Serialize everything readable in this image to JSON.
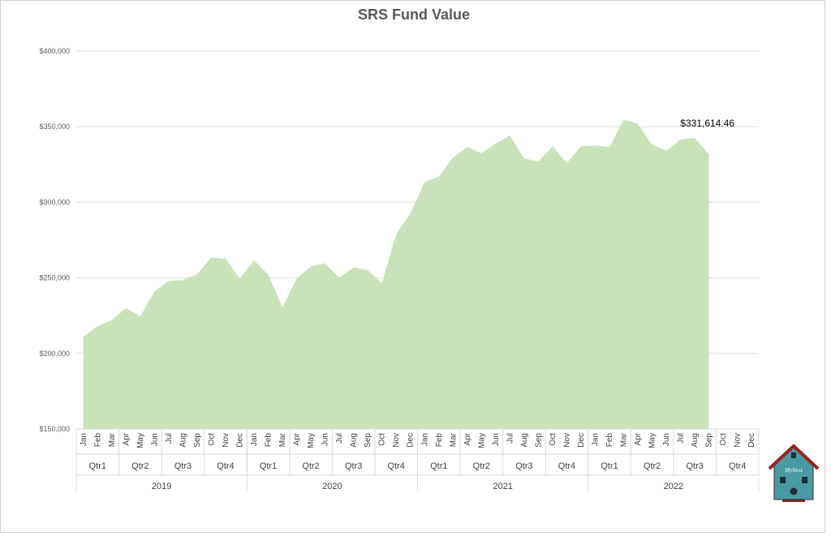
{
  "chart_data": {
    "type": "area",
    "title": "SRS Fund Value",
    "xlabel": "",
    "ylabel": "",
    "ylim": [
      150000,
      400000
    ],
    "yticks": [
      150000,
      200000,
      250000,
      300000,
      350000,
      400000
    ],
    "ytick_labels": [
      "$150,000",
      "$200,000",
      "$250,000",
      "$300,000",
      "$350,000",
      "$400,000"
    ],
    "grid": true,
    "legend": "none",
    "colors": {
      "area": "#c9e2ba",
      "gridline": "#d9d9d9",
      "text": "#595959"
    },
    "years": [
      "2019",
      "2020",
      "2021",
      "2022"
    ],
    "quarters": [
      "Qtr1",
      "Qtr2",
      "Qtr3",
      "Qtr4"
    ],
    "months": [
      "Jan",
      "Feb",
      "Mar",
      "Apr",
      "May",
      "Jun",
      "Jul",
      "Aug",
      "Sep",
      "Oct",
      "Nov",
      "Dec"
    ],
    "series": [
      {
        "values": [
          211000,
          218000,
          222000,
          230000,
          224500,
          241000,
          248000,
          248500,
          252500,
          263500,
          262500,
          249500,
          261500,
          252000,
          230500,
          249500,
          257500,
          259500,
          250000,
          257000,
          255000,
          246500,
          279000,
          292500,
          313500,
          317000,
          329500,
          336500,
          332500,
          339000,
          344000,
          329000,
          327000,
          337000,
          326000,
          337000,
          337500,
          336500,
          354500,
          352000,
          338000,
          334000,
          341500,
          342500,
          331614.46,
          null,
          null,
          null
        ]
      }
    ],
    "annotations": [
      {
        "text": "$331,614.46",
        "year": "2022",
        "month": "Sep",
        "value": 331614.46
      }
    ]
  },
  "logo": {
    "text": "MyNest"
  }
}
